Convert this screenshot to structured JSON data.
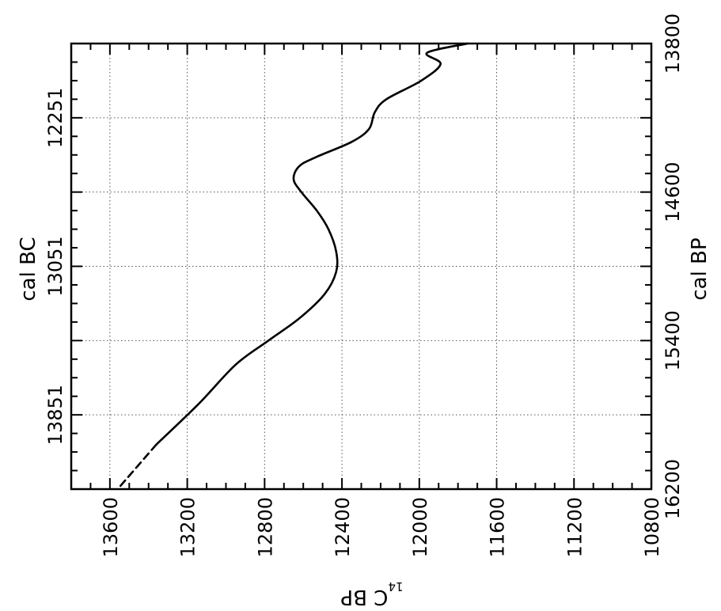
{
  "chart_data": {
    "type": "line",
    "orientation": "rotated-90",
    "xlabel": "14C BP",
    "xlabel_superscript": "14",
    "xlabel_main": "C BP",
    "xlim": [
      13800,
      10800
    ],
    "xticks": [
      13600,
      13200,
      12800,
      12400,
      12000,
      11600,
      11200,
      10800
    ],
    "ylabel_right": "cal BP",
    "ylim_calbp": [
      16200,
      13800
    ],
    "yticks_calbp": [
      16200,
      15400,
      14600,
      13800
    ],
    "ylabel_left": "cal BC",
    "yticks_calbc": [
      13851,
      13051,
      12251
    ],
    "grid": true,
    "series": [
      {
        "style": "solid",
        "points": [
          {
            "cal_bp": 13800,
            "c14": 11750
          },
          {
            "cal_bp": 13850,
            "c14": 11960
          },
          {
            "cal_bp": 13910,
            "c14": 11890
          },
          {
            "cal_bp": 14000,
            "c14": 11990
          },
          {
            "cal_bp": 14100,
            "c14": 12170
          },
          {
            "cal_bp": 14170,
            "c14": 12230
          },
          {
            "cal_bp": 14260,
            "c14": 12260
          },
          {
            "cal_bp": 14330,
            "c14": 12350
          },
          {
            "cal_bp": 14410,
            "c14": 12530
          },
          {
            "cal_bp": 14460,
            "c14": 12620
          },
          {
            "cal_bp": 14530,
            "c14": 12650
          },
          {
            "cal_bp": 14600,
            "c14": 12610
          },
          {
            "cal_bp": 14700,
            "c14": 12530
          },
          {
            "cal_bp": 14800,
            "c14": 12470
          },
          {
            "cal_bp": 14920,
            "c14": 12430
          },
          {
            "cal_bp": 15030,
            "c14": 12430
          },
          {
            "cal_bp": 15150,
            "c14": 12490
          },
          {
            "cal_bp": 15280,
            "c14": 12620
          },
          {
            "cal_bp": 15400,
            "c14": 12780
          },
          {
            "cal_bp": 15530,
            "c14": 12950
          },
          {
            "cal_bp": 15740,
            "c14": 13140
          },
          {
            "cal_bp": 15960,
            "c14": 13360
          }
        ]
      },
      {
        "style": "dashed",
        "points": [
          {
            "cal_bp": 15960,
            "c14": 13360
          },
          {
            "cal_bp": 16200,
            "c14": 13560
          }
        ]
      }
    ]
  }
}
